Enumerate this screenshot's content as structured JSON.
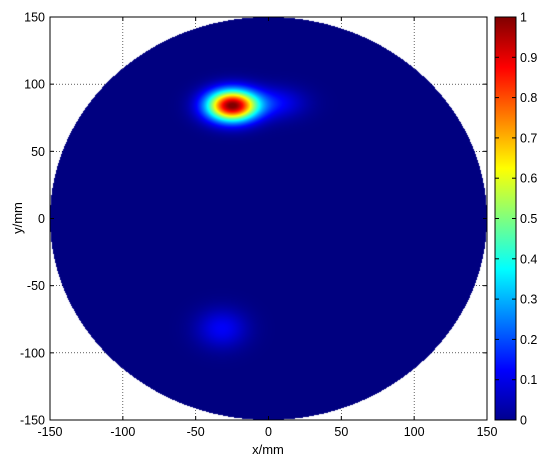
{
  "chart_data": {
    "type": "heatmap",
    "title": "",
    "xlabel": "x/mm",
    "ylabel": "y/mm",
    "xlim": [
      -150,
      150
    ],
    "ylim": [
      -150,
      150
    ],
    "x_ticks": [
      "-150",
      "-100",
      "-50",
      "0",
      "50",
      "100",
      "150"
    ],
    "y_ticks": [
      "150",
      "100",
      "50",
      "0",
      "-50",
      "-100",
      "-150"
    ],
    "grid": true,
    "domain_shape": "circle",
    "domain_radius": 150,
    "background_value": 0,
    "colormap": "jet",
    "colorbar": {
      "min": 0,
      "max": 1,
      "ticks": [
        "1",
        "0.9",
        "0.8",
        "0.7",
        "0.6",
        "0.5",
        "0.4",
        "0.3",
        "0.2",
        "0.1",
        "0"
      ]
    },
    "hotspots": [
      {
        "x": -25,
        "y": 84,
        "peak": 1.0,
        "sigma_x": 12,
        "sigma_y": 8
      },
      {
        "x": 5,
        "y": 86,
        "peak": 0.12,
        "sigma_x": 14,
        "sigma_y": 8
      },
      {
        "x": -32,
        "y": -82,
        "peak": 0.12,
        "sigma_x": 12,
        "sigma_y": 10
      }
    ]
  }
}
